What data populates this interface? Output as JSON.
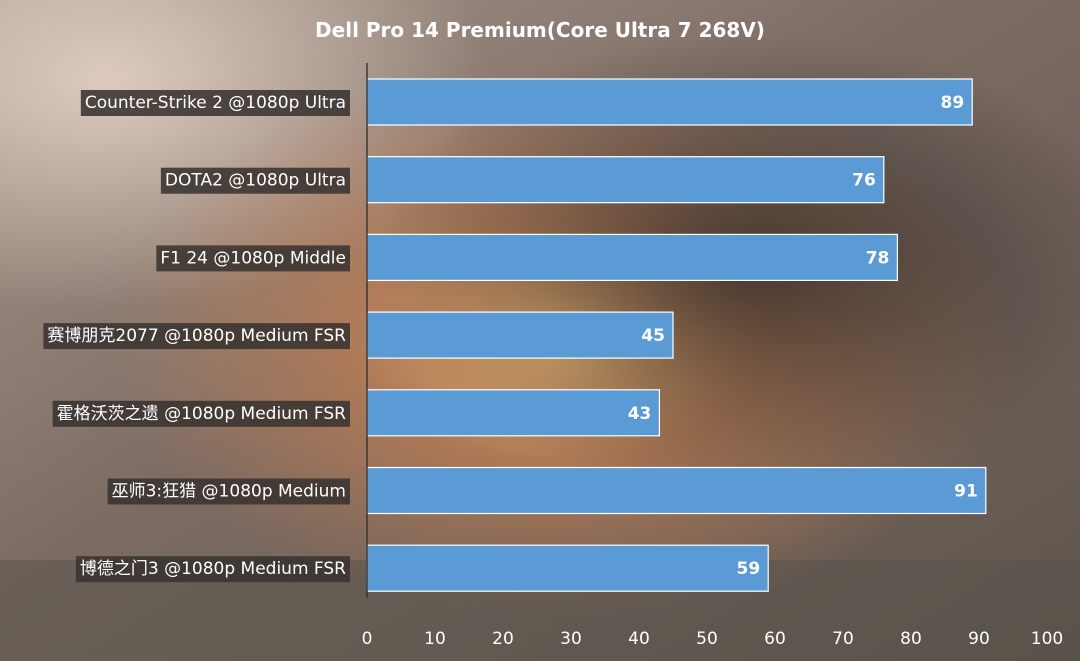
{
  "colors": {
    "bar_fill": "#5b9bd5",
    "bar_stroke": "#ffffff",
    "axis_line": "#333333",
    "label_bg": "#3a3330"
  },
  "chart_data": {
    "type": "bar",
    "orientation": "horizontal",
    "title": "Dell Pro 14 Premium(Core Ultra 7 268V)",
    "categories": [
      "Counter-Strike 2 @1080p Ultra",
      "DOTA2 @1080p Ultra",
      "F1 24 @1080p Middle",
      "赛博朋克2077 @1080p Medium FSR",
      "霍格沃茨之遗 @1080p Medium FSR",
      "巫师3:狂猎 @1080p Medium",
      "博德之门3 @1080p Medium FSR"
    ],
    "values": [
      89,
      76,
      78,
      45,
      43,
      91,
      59
    ],
    "data_labels": [
      "89",
      "76",
      "78",
      "45",
      "43",
      "91",
      "59"
    ],
    "xlim": [
      0,
      100
    ],
    "xticks": [
      "0",
      "10",
      "20",
      "30",
      "40",
      "50",
      "60",
      "70",
      "80",
      "90",
      "100"
    ],
    "grid": false,
    "legend": "none"
  }
}
